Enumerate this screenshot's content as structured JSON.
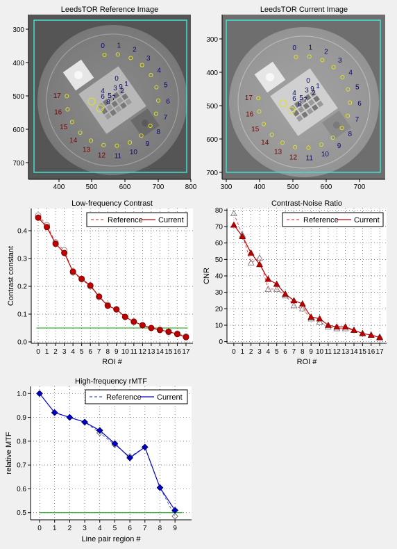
{
  "images": [
    {
      "title": "LeedsTOR Reference Image",
      "xticks": [
        400,
        500,
        600,
        700,
        800
      ],
      "yticks": [
        300,
        400,
        500,
        600,
        700
      ],
      "roi_labels": [
        "0",
        "1",
        "2",
        "3",
        "4",
        "5",
        "6",
        "7",
        "8",
        "9",
        "10",
        "11",
        "12",
        "13",
        "14",
        "15",
        "16",
        "17"
      ],
      "center_labels": [
        "0",
        "1",
        "2",
        "3",
        "4",
        "5",
        "6",
        "7",
        "8",
        "9"
      ]
    },
    {
      "title": "LeedsTOR Current Image",
      "xticks": [
        300,
        400,
        500,
        600,
        700
      ],
      "yticks": [
        300,
        400,
        500,
        600,
        700
      ],
      "roi_labels": [
        "0",
        "1",
        "2",
        "3",
        "4",
        "5",
        "6",
        "7",
        "8",
        "9",
        "10",
        "11",
        "12",
        "13",
        "14",
        "15",
        "16",
        "17"
      ],
      "center_labels": [
        "0",
        "1",
        "2",
        "3",
        "4",
        "5",
        "6",
        "7",
        "8",
        "9"
      ]
    }
  ],
  "colors": {
    "reference_red": "#e04040",
    "current_red": "#c00000",
    "reference_blue": "#4060c0",
    "current_blue": "#0000cc",
    "threshold": "#00a000",
    "roi_frame": "#40e0d0"
  },
  "chart_data": [
    {
      "type": "line",
      "title": "Low-frequency Contrast",
      "xlabel": "ROI #",
      "ylabel": "Contrast constant",
      "x": [
        0,
        1,
        2,
        3,
        4,
        5,
        6,
        7,
        8,
        9,
        10,
        11,
        12,
        13,
        14,
        15,
        16,
        17
      ],
      "xlim": [
        -0.8,
        17.8
      ],
      "ylim": [
        -0.005,
        0.48
      ],
      "yticks": [
        0.0,
        0.1,
        0.2,
        0.3,
        0.4
      ],
      "ytick_labels": [
        "0.0",
        "0.1",
        "0.2",
        "0.3",
        "0.4"
      ],
      "grid": true,
      "legend": "top-right",
      "threshold": 0.05,
      "series": [
        {
          "name": "Reference",
          "style": "dashed",
          "marker": "circle-open",
          "values": [
            0.455,
            0.42,
            0.358,
            0.33,
            0.25,
            0.225,
            0.2,
            0.163,
            0.133,
            0.117,
            0.09,
            0.072,
            0.06,
            0.05,
            0.043,
            0.035,
            0.03,
            0.02
          ]
        },
        {
          "name": "Current",
          "style": "solid",
          "marker": "circle-filled",
          "values": [
            0.447,
            0.413,
            0.353,
            0.32,
            0.253,
            0.227,
            0.203,
            0.163,
            0.13,
            0.117,
            0.09,
            0.073,
            0.06,
            0.05,
            0.043,
            0.037,
            0.028,
            0.017
          ]
        }
      ]
    },
    {
      "type": "line",
      "title": "Contrast-Noise Ratio",
      "xlabel": "ROI #",
      "ylabel": "CNR",
      "x": [
        0,
        1,
        2,
        3,
        4,
        5,
        6,
        7,
        8,
        9,
        10,
        11,
        12,
        13,
        14,
        15,
        16,
        17
      ],
      "xlim": [
        -0.8,
        17.8
      ],
      "ylim": [
        -1,
        81
      ],
      "yticks": [
        0,
        10,
        20,
        30,
        40,
        50,
        60,
        70,
        80
      ],
      "ytick_labels": [
        "0",
        "10",
        "20",
        "30",
        "40",
        "50",
        "60",
        "70",
        "80"
      ],
      "grid": true,
      "legend": "top-right",
      "series": [
        {
          "name": "Reference",
          "style": "dashed",
          "marker": "triangle-open",
          "values": [
            78,
            65,
            48,
            51,
            32,
            32,
            28,
            22,
            20,
            14,
            12,
            9,
            8,
            8,
            7,
            5,
            4,
            3
          ]
        },
        {
          "name": "Current",
          "style": "solid",
          "marker": "triangle-filled",
          "values": [
            71,
            64,
            54,
            47,
            38,
            35,
            29,
            25,
            23,
            15,
            14,
            10,
            9,
            9,
            7,
            5,
            4,
            2.5
          ]
        }
      ]
    },
    {
      "type": "line",
      "title": "High-frequency rMTF",
      "xlabel": "Line pair region #",
      "ylabel": "relative MTF",
      "x": [
        0,
        1,
        2,
        3,
        4,
        5,
        6,
        7,
        8,
        9
      ],
      "xlim": [
        -0.6,
        10.1
      ],
      "ylim": [
        0.47,
        1.03
      ],
      "yticks": [
        0.5,
        0.6,
        0.7,
        0.8,
        0.9,
        1.0
      ],
      "ytick_labels": [
        "0.5",
        "0.6",
        "0.7",
        "0.8",
        "0.9",
        "1.0"
      ],
      "grid": true,
      "legend": "top-right",
      "threshold": 0.5,
      "series": [
        {
          "name": "Reference",
          "style": "dashed",
          "marker": "diamond-open",
          "values": [
            1.0,
            0.92,
            0.9,
            0.88,
            0.835,
            0.785,
            0.735,
            0.775,
            0.605,
            0.485
          ]
        },
        {
          "name": "Current",
          "style": "solid",
          "marker": "diamond-filled",
          "values": [
            1.0,
            0.92,
            0.9,
            0.88,
            0.845,
            0.79,
            0.73,
            0.775,
            0.605,
            0.51
          ]
        }
      ]
    }
  ]
}
